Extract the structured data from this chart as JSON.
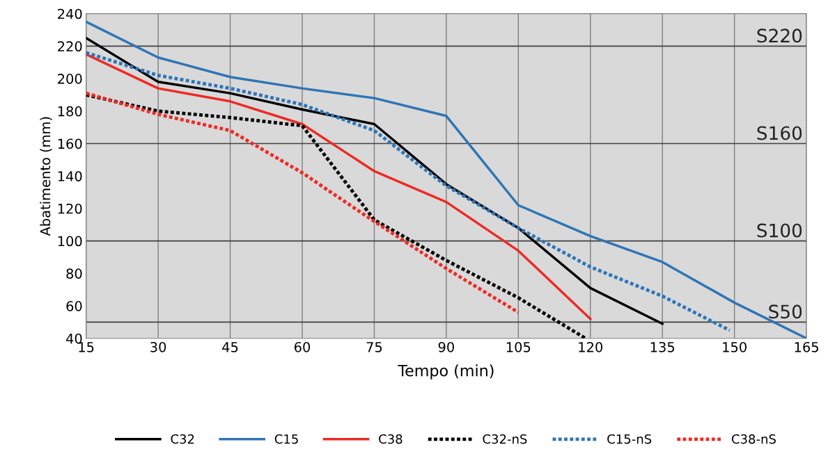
{
  "chart_data": {
    "type": "line",
    "xlabel": "Tempo (min)",
    "ylabel": "Abatimento (mm)",
    "xlim": [
      15,
      165
    ],
    "xticks": [
      15,
      30,
      45,
      60,
      75,
      90,
      105,
      120,
      135,
      150,
      165
    ],
    "ylim": [
      40,
      240
    ],
    "yticks": [
      40,
      60,
      80,
      100,
      120,
      140,
      160,
      180,
      200,
      220,
      240
    ],
    "grid": "x",
    "legend": "bottom",
    "series": [
      {
        "name": "C32",
        "color": "#000000",
        "line_style": "solid",
        "x": [
          15,
          30,
          45,
          60,
          75,
          90,
          105,
          120,
          135
        ],
        "values": [
          225,
          198,
          191,
          181,
          172,
          135,
          108,
          71,
          49
        ]
      },
      {
        "name": "C15",
        "color": "#2e75b6",
        "line_style": "solid",
        "x": [
          15,
          30,
          45,
          60,
          75,
          90,
          105,
          120,
          135,
          150,
          165
        ],
        "values": [
          235,
          213,
          201,
          194,
          188,
          177,
          122,
          103,
          87,
          62,
          40
        ]
      },
      {
        "name": "C38",
        "color": "#ee2a24",
        "line_style": "solid",
        "x": [
          15,
          30,
          45,
          60,
          75,
          90,
          105,
          120
        ],
        "values": [
          215,
          194,
          186,
          172,
          143,
          124,
          94,
          52
        ]
      },
      {
        "name": "C32-nS",
        "color": "#000000",
        "line_style": "dotted",
        "x": [
          15,
          30,
          45,
          60,
          75,
          90,
          105,
          119
        ],
        "values": [
          190,
          180,
          176,
          171,
          113,
          88,
          65,
          40
        ]
      },
      {
        "name": "C15-nS",
        "color": "#2e75b6",
        "line_style": "dotted",
        "x": [
          15,
          30,
          45,
          60,
          75,
          90,
          105,
          120,
          135,
          149
        ],
        "values": [
          216,
          202,
          194,
          184,
          168,
          134,
          108,
          84,
          66,
          45
        ]
      },
      {
        "name": "C38-nS",
        "color": "#ee2a24",
        "line_style": "dotted",
        "x": [
          15,
          30,
          45,
          60,
          75,
          90,
          105
        ],
        "values": [
          191,
          178,
          168,
          142,
          112,
          83,
          56
        ]
      }
    ],
    "ref_lines": [
      {
        "axis": "y",
        "value": 220,
        "label": "S220",
        "color": "#404040"
      },
      {
        "axis": "y",
        "value": 160,
        "label": "S160",
        "color": "#404040"
      },
      {
        "axis": "y",
        "value": 100,
        "label": "S100",
        "color": "#404040"
      },
      {
        "axis": "y",
        "value": 50,
        "label": "S50",
        "color": "#404040"
      }
    ]
  }
}
